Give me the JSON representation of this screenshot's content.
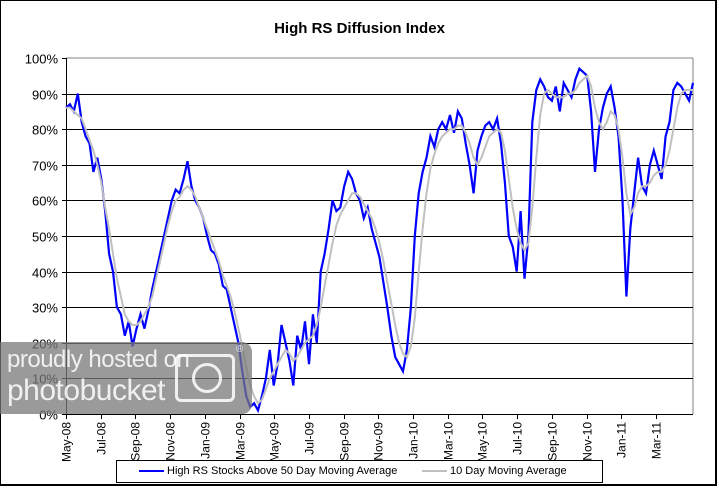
{
  "chart_data": {
    "type": "line",
    "title": "High RS Diffusion Index",
    "xlabel": "",
    "ylabel": "",
    "ylim": [
      0,
      100
    ],
    "y_ticks": [
      "0%",
      "10%",
      "20%",
      "30%",
      "40%",
      "50%",
      "60%",
      "70%",
      "80%",
      "90%",
      "100%"
    ],
    "x_ticks": [
      "May-08",
      "Jul-08",
      "Sep-08",
      "Nov-08",
      "Jan-09",
      "Mar-09",
      "May-09",
      "Jul-09",
      "Sep-09",
      "Nov-09",
      "Jan-10",
      "Mar-10",
      "May-10",
      "Jul-10",
      "Sep-10",
      "Nov-10",
      "Jan-11",
      "Mar-11"
    ],
    "grid": true,
    "legend_position": "bottom",
    "series": [
      {
        "name": "High RS Stocks Above 50 Day Moving Average",
        "color": "#0000FF",
        "values": [
          86,
          87,
          85,
          90,
          82,
          78,
          76,
          68,
          72,
          66,
          57,
          45,
          40,
          30,
          28,
          22,
          26,
          19,
          24,
          28,
          24,
          29,
          35,
          40,
          45,
          50,
          55,
          60,
          63,
          62,
          66,
          71,
          64,
          60,
          58,
          55,
          50,
          46,
          45,
          42,
          36,
          35,
          30,
          25,
          20,
          12,
          5,
          2,
          3,
          1,
          5,
          10,
          18,
          8,
          14,
          25,
          20,
          15,
          8,
          22,
          18,
          26,
          14,
          28,
          20,
          40,
          45,
          52,
          60,
          57,
          58,
          64,
          68,
          66,
          62,
          60,
          55,
          58,
          52,
          48,
          44,
          37,
          30,
          22,
          16,
          14,
          12,
          18,
          30,
          50,
          62,
          68,
          72,
          78,
          75,
          80,
          82,
          80,
          84,
          79,
          85,
          83,
          76,
          70,
          62,
          74,
          78,
          81,
          82,
          80,
          83,
          76,
          65,
          50,
          47,
          40,
          57,
          38,
          50,
          82,
          91,
          94,
          92,
          89,
          88,
          92,
          85,
          93,
          91,
          89,
          94,
          97,
          96,
          95,
          85,
          68,
          80,
          86,
          90,
          92,
          86,
          78,
          60,
          33,
          52,
          62,
          72,
          64,
          62,
          70,
          74,
          70,
          66,
          78,
          82,
          91,
          93,
          92,
          90,
          88,
          93
        ]
      },
      {
        "name": "10 Day Moving Average",
        "color": "#C0C0C0",
        "values": [
          86,
          86,
          85,
          84,
          83,
          80,
          77,
          74,
          70,
          65,
          58,
          52,
          45,
          38,
          33,
          28,
          26,
          25,
          25,
          26,
          28,
          30,
          33,
          38,
          43,
          48,
          53,
          57,
          60,
          61,
          63,
          64,
          63,
          61,
          58,
          55,
          52,
          49,
          46,
          43,
          39,
          36,
          33,
          29,
          24,
          19,
          13,
          8,
          5,
          3,
          4,
          7,
          10,
          12,
          14,
          16,
          18,
          17,
          15,
          16,
          18,
          20,
          21,
          22,
          25,
          30,
          36,
          42,
          48,
          53,
          56,
          58,
          60,
          62,
          62,
          61,
          59,
          57,
          55,
          52,
          48,
          43,
          37,
          31,
          25,
          20,
          17,
          16,
          19,
          27,
          40,
          52,
          62,
          69,
          73,
          76,
          78,
          79,
          80,
          80,
          81,
          81,
          79,
          76,
          72,
          70,
          72,
          75,
          78,
          79,
          80,
          79,
          74,
          66,
          58,
          52,
          48,
          46,
          48,
          58,
          72,
          84,
          90,
          91,
          90,
          89,
          89,
          89,
          90,
          90,
          91,
          93,
          94,
          95,
          92,
          86,
          82,
          80,
          82,
          85,
          84,
          80,
          72,
          62,
          56,
          58,
          62,
          64,
          64,
          65,
          67,
          68,
          68,
          70,
          74,
          80,
          86,
          90,
          91,
          91,
          91
        ]
      }
    ]
  },
  "legend": {
    "series_1_label": "High RS Stocks Above 50 Day Moving Average",
    "series_2_label": "10 Day Moving Average"
  },
  "watermark": {
    "line1": "proudly hosted on",
    "line2": "photobucket",
    "reg_mark": "®"
  }
}
